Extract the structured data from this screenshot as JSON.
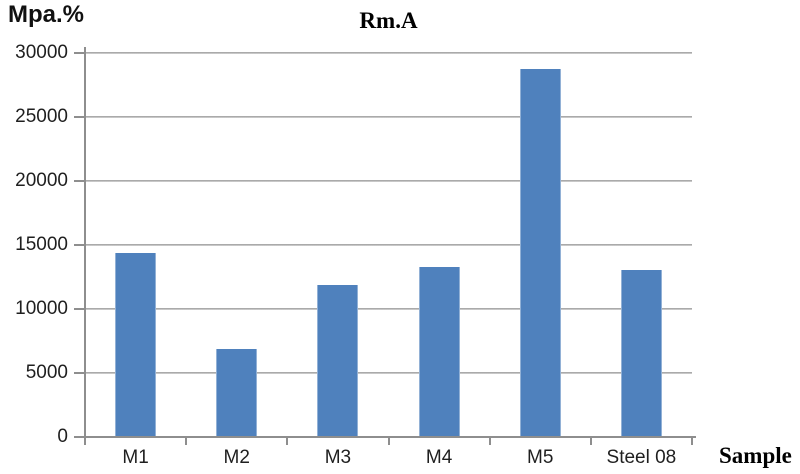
{
  "chart_data": {
    "type": "bar",
    "title": "Rm.A",
    "ylabel": "Mpa.%",
    "xlabel": "Sample",
    "categories": [
      "M1",
      "M2",
      "M3",
      "M4",
      "M5",
      "Steel 08"
    ],
    "values": [
      14400,
      6900,
      11900,
      13300,
      28750,
      13050
    ],
    "ylim": [
      0,
      30000
    ],
    "yticks": [
      0,
      5000,
      10000,
      15000,
      20000,
      25000,
      30000
    ],
    "grid": true,
    "legend": "none",
    "bar_color": "#4f81bd",
    "gridline_color": "#a6a6a6",
    "axis_color": "#8e8e8e",
    "tick_label_color": "#1f1f1f",
    "title_color": "#000000"
  }
}
